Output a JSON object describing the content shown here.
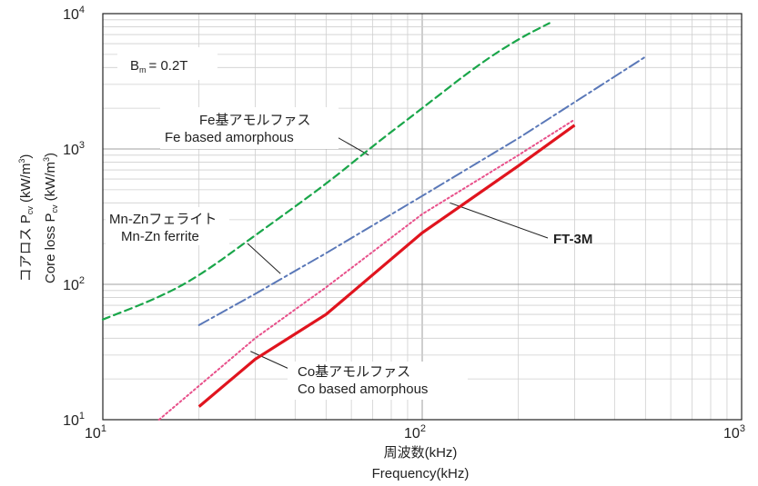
{
  "chart_data": {
    "type": "line",
    "title": "",
    "xlabel_ja": "周波数(kHz)",
    "xlabel_en": "Frequency(kHz)",
    "ylabel_ja": "コアロス Pcv (kW/m3)",
    "ylabel_en": "Core loss Pcv (kW/m3)",
    "x_scale": "log",
    "y_scale": "log",
    "xlim": [
      10,
      1000
    ],
    "ylim": [
      10,
      10000
    ],
    "grid": true,
    "x_ticks": [
      {
        "base": "10",
        "exp": "1"
      },
      {
        "base": "10",
        "exp": "2"
      },
      {
        "base": "10",
        "exp": "3"
      }
    ],
    "y_ticks": [
      {
        "base": "10",
        "exp": "1"
      },
      {
        "base": "10",
        "exp": "2"
      },
      {
        "base": "10",
        "exp": "3"
      },
      {
        "base": "10",
        "exp": "4"
      }
    ],
    "condition": {
      "main": "B",
      "sub": "m",
      "rest": "= 0.2T"
    },
    "series": [
      {
        "name": "Fe based amorphous",
        "label_ja": "Fe基アモルファス",
        "label_en": "Fe based amorphous",
        "color": "#1aa64a",
        "style": "dashed",
        "x": [
          10,
          15,
          20,
          30,
          50,
          70,
          100,
          150,
          200,
          250
        ],
        "y": [
          55,
          80,
          115,
          230,
          550,
          1050,
          2000,
          4200,
          6500,
          8500
        ]
      },
      {
        "name": "Mn-Zn ferrite",
        "label_ja": "Mn-Znフェライト",
        "label_en": "Mn-Zn ferrite",
        "color": "#5a78b8",
        "style": "dashdot",
        "x": [
          20,
          30,
          50,
          100,
          200,
          500
        ],
        "y": [
          50,
          85,
          170,
          450,
          1200,
          4800
        ]
      },
      {
        "name": "Co based amorphous",
        "label_ja": "Co基アモルファス",
        "label_en": "Co based amorphous",
        "color": "#e8508a",
        "style": "dotted",
        "x": [
          15,
          30,
          50,
          100,
          200,
          300
        ],
        "y": [
          10,
          40,
          95,
          330,
          900,
          1650
        ]
      },
      {
        "name": "FT-3M",
        "label_en": "FT-3M",
        "color": "#e0141e",
        "style": "solid",
        "x": [
          20,
          30,
          50,
          100,
          200,
          300
        ],
        "y": [
          12.5,
          28,
          60,
          240,
          750,
          1500
        ]
      }
    ]
  }
}
